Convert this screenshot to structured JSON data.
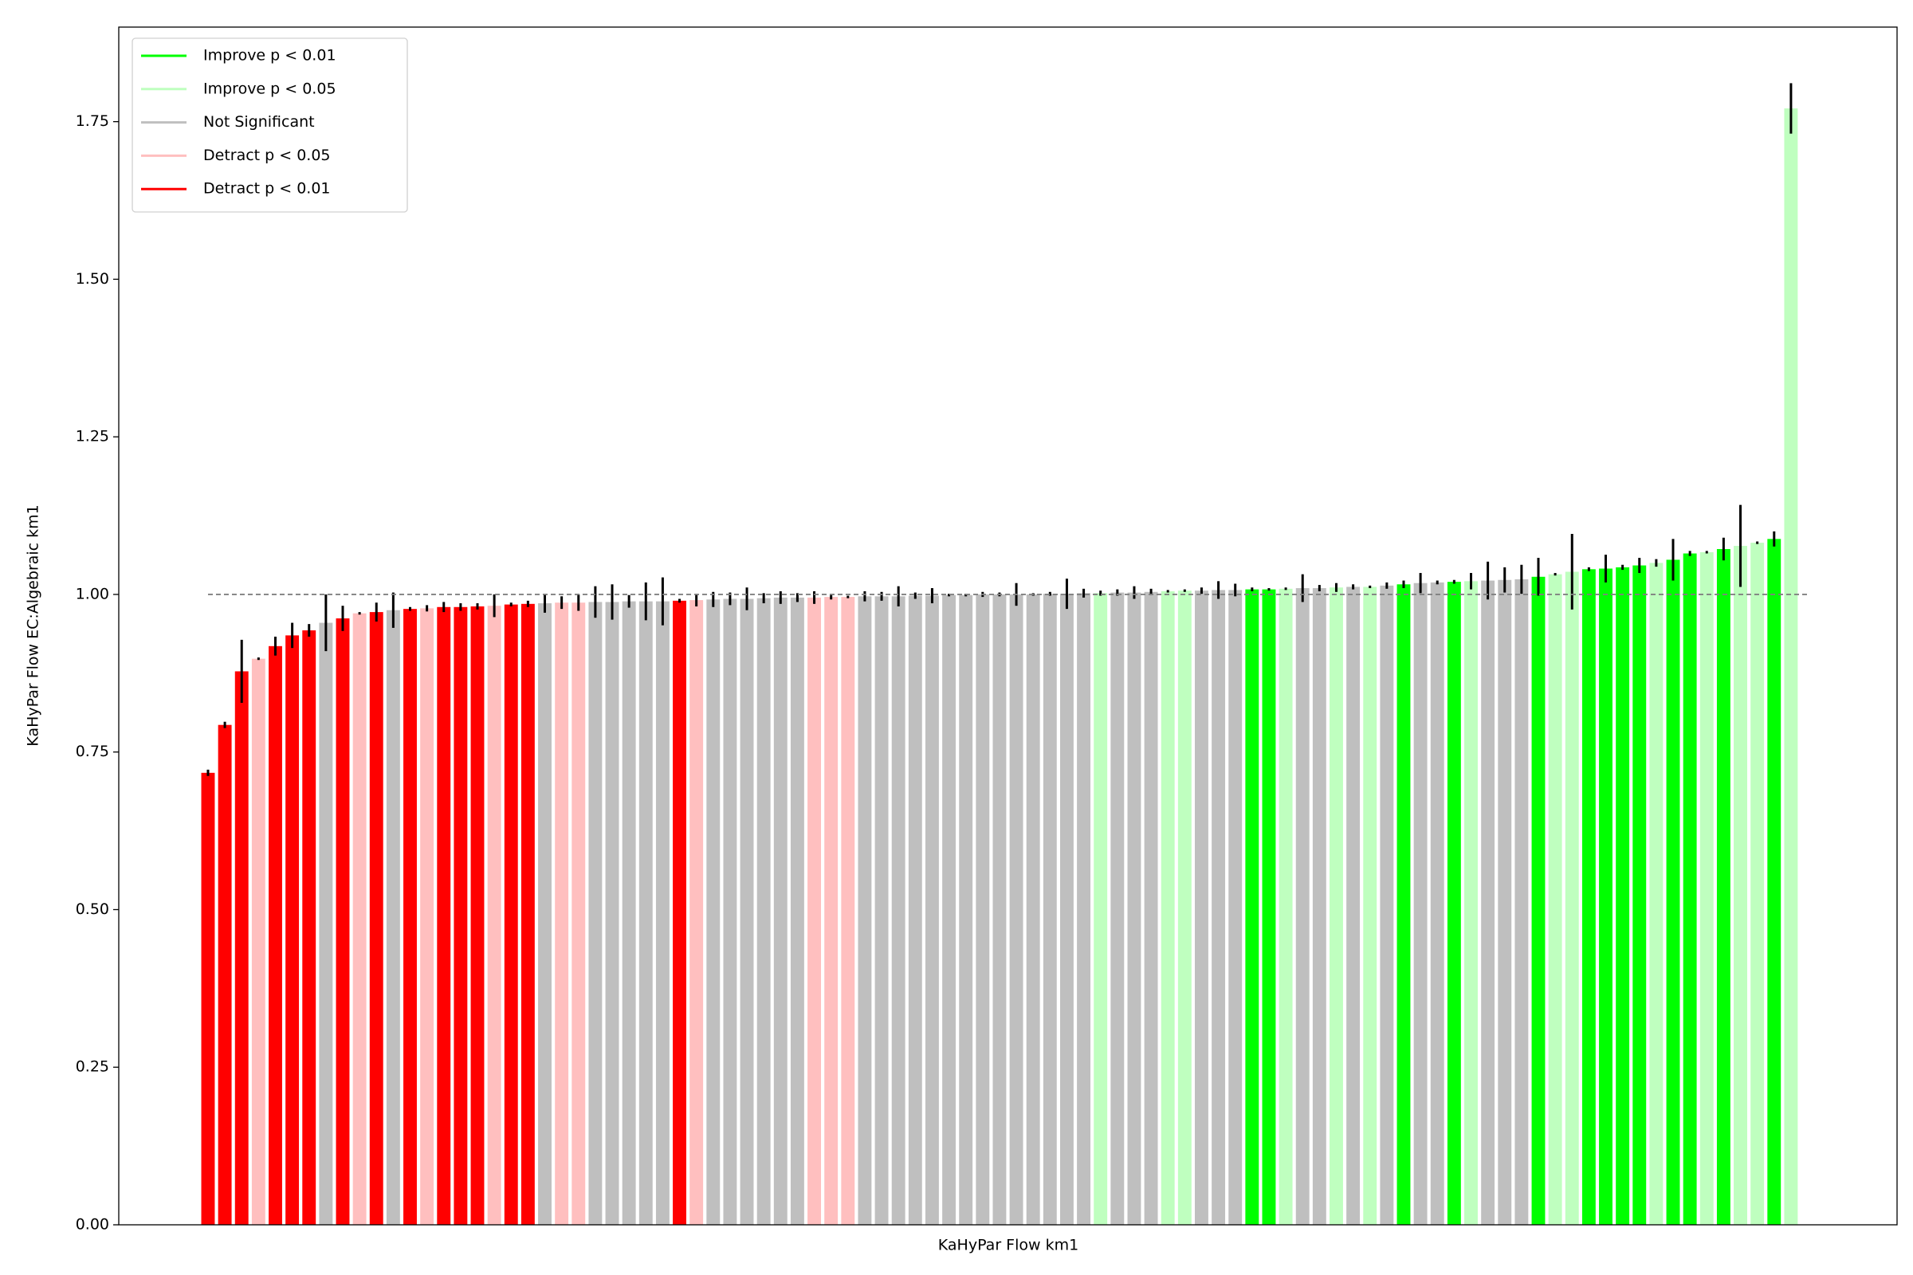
{
  "chart_data": {
    "type": "bar",
    "xlabel": "KaHyPar Flow km1",
    "ylabel": "KaHyPar Flow EC:Algebraic km1",
    "legend": [
      {
        "name": "Improve p < 0.01",
        "color": "#00ff00"
      },
      {
        "name": "Improve p < 0.05",
        "color": "#bfffbf"
      },
      {
        "name": "Not Significant",
        "color": "#bfbfbf"
      },
      {
        "name": "Detract p < 0.05",
        "color": "#ffbfbf"
      },
      {
        "name": "Detract p < 0.01",
        "color": "#ff0000"
      }
    ],
    "legend_position": "upper left",
    "values": [
      0.717,
      0.793,
      0.878,
      0.898,
      0.918,
      0.935,
      0.943,
      0.955,
      0.962,
      0.97,
      0.972,
      0.975,
      0.977,
      0.978,
      0.98,
      0.98,
      0.981,
      0.982,
      0.984,
      0.985,
      0.986,
      0.987,
      0.987,
      0.988,
      0.988,
      0.989,
      0.989,
      0.989,
      0.99,
      0.991,
      0.992,
      0.993,
      0.993,
      0.994,
      0.995,
      0.995,
      0.995,
      0.996,
      0.996,
      0.997,
      0.997,
      0.997,
      0.998,
      0.998,
      0.999,
      0.999,
      1.0,
      1.0,
      1.0,
      1.0,
      1.001,
      1.001,
      1.002,
      1.002,
      1.003,
      1.003,
      1.004,
      1.005,
      1.006,
      1.006,
      1.007,
      1.007,
      1.008,
      1.008,
      1.009,
      1.01,
      1.01,
      1.011,
      1.012,
      1.012,
      1.014,
      1.016,
      1.018,
      1.019,
      1.02,
      1.021,
      1.022,
      1.023,
      1.024,
      1.028,
      1.032,
      1.036,
      1.04,
      1.041,
      1.043,
      1.046,
      1.05,
      1.055,
      1.065,
      1.067,
      1.072,
      1.077,
      1.082,
      1.088,
      1.771
    ],
    "errors": [
      0.005,
      0.005,
      0.05,
      0.002,
      0.015,
      0.02,
      0.01,
      0.045,
      0.02,
      0.002,
      0.015,
      0.028,
      0.003,
      0.005,
      0.008,
      0.006,
      0.005,
      0.018,
      0.003,
      0.005,
      0.015,
      0.01,
      0.013,
      0.025,
      0.028,
      0.01,
      0.03,
      0.038,
      0.003,
      0.01,
      0.012,
      0.01,
      0.018,
      0.008,
      0.01,
      0.007,
      0.01,
      0.004,
      0.002,
      0.008,
      0.007,
      0.016,
      0.005,
      0.012,
      0.002,
      0.002,
      0.004,
      0.003,
      0.018,
      0.002,
      0.003,
      0.024,
      0.007,
      0.004,
      0.005,
      0.01,
      0.005,
      0.002,
      0.002,
      0.005,
      0.014,
      0.01,
      0.003,
      0.002,
      0.002,
      0.022,
      0.005,
      0.007,
      0.004,
      0.002,
      0.005,
      0.006,
      0.016,
      0.003,
      0.003,
      0.013,
      0.03,
      0.02,
      0.023,
      0.03,
      0.002,
      0.06,
      0.003,
      0.022,
      0.004,
      0.012,
      0.006,
      0.033,
      0.004,
      0.002,
      0.018,
      0.065,
      0.002,
      0.012,
      0.04
    ],
    "bar_legend_index": [
      4,
      4,
      4,
      3,
      4,
      4,
      4,
      2,
      4,
      3,
      4,
      2,
      4,
      3,
      4,
      4,
      4,
      3,
      4,
      4,
      2,
      3,
      3,
      2,
      2,
      2,
      2,
      2,
      4,
      3,
      2,
      2,
      2,
      2,
      2,
      2,
      3,
      3,
      3,
      2,
      2,
      2,
      2,
      2,
      2,
      2,
      2,
      2,
      2,
      2,
      2,
      2,
      2,
      1,
      2,
      2,
      2,
      1,
      1,
      2,
      2,
      2,
      0,
      0,
      1,
      2,
      2,
      1,
      2,
      1,
      2,
      0,
      2,
      2,
      0,
      1,
      2,
      2,
      2,
      0,
      1,
      1,
      0,
      0,
      0,
      0,
      1,
      0,
      0,
      1,
      0,
      1,
      1,
      0,
      1
    ],
    "reference_line": 1.0,
    "ylim": [
      0,
      1.9
    ],
    "yticks": [
      {
        "value": 0,
        "label": "0.00"
      },
      {
        "value": 0.25,
        "label": "0.25"
      },
      {
        "value": 0.5,
        "label": "0.50"
      },
      {
        "value": 0.75,
        "label": "0.75"
      },
      {
        "value": 1.0,
        "label": "1.00"
      },
      {
        "value": 1.25,
        "label": "1.25"
      },
      {
        "value": 1.5,
        "label": "1.50"
      },
      {
        "value": 1.75,
        "label": "1.75"
      }
    ]
  }
}
